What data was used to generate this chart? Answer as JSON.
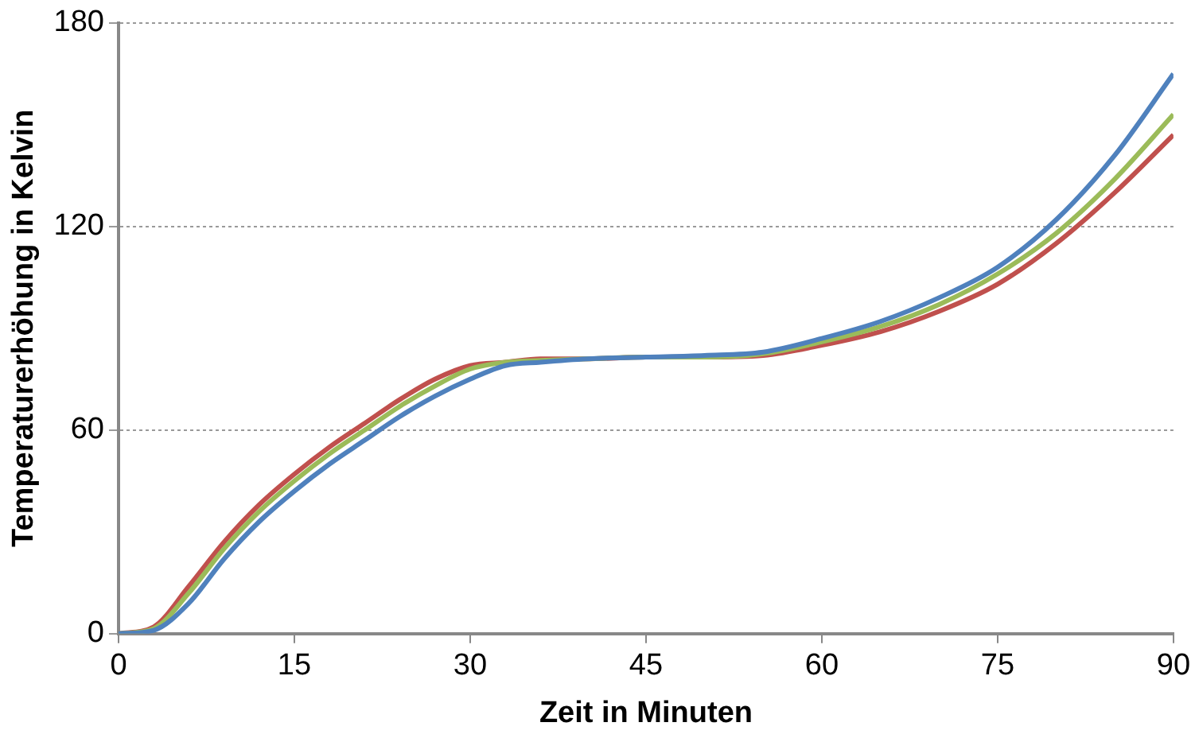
{
  "chart_data": {
    "type": "line",
    "xlabel": "Zeit in Minuten",
    "ylabel": "Temperaturerhöhung in Kelvin",
    "x": [
      0,
      3,
      6,
      9,
      12,
      15,
      18,
      21,
      24,
      27,
      30,
      33,
      36,
      40,
      45,
      50,
      55,
      60,
      65,
      70,
      75,
      80,
      85,
      90
    ],
    "series": [
      {
        "color": "#4f81bd",
        "values": [
          0,
          1,
          9,
          22,
          33,
          42,
          50,
          57,
          64,
          70,
          75,
          79,
          80,
          81,
          81.5,
          82,
          83,
          87,
          92,
          99,
          108,
          122,
          141,
          165
        ]
      },
      {
        "color": "#9bbb59",
        "values": [
          0,
          1.5,
          12,
          25,
          36,
          45,
          53,
          60,
          67,
          73,
          78,
          80,
          80.5,
          81,
          81.5,
          81.5,
          82.5,
          86,
          90.5,
          97,
          106,
          118,
          134,
          153
        ]
      },
      {
        "color": "#c0504d",
        "values": [
          0,
          2,
          14,
          27,
          38,
          47,
          55,
          62,
          69,
          75,
          79,
          80,
          81,
          81,
          81.5,
          81.5,
          82,
          85,
          89,
          95,
          103,
          115,
          130,
          147
        ]
      }
    ],
    "xlim": [
      0,
      90
    ],
    "xticks": [
      0,
      15,
      30,
      45,
      60,
      75,
      90
    ],
    "ylim": [
      0,
      180
    ],
    "yticks": [
      0,
      60,
      120,
      180
    ],
    "grid": "y",
    "legend": false,
    "marker": "none",
    "line_style": "solid"
  }
}
